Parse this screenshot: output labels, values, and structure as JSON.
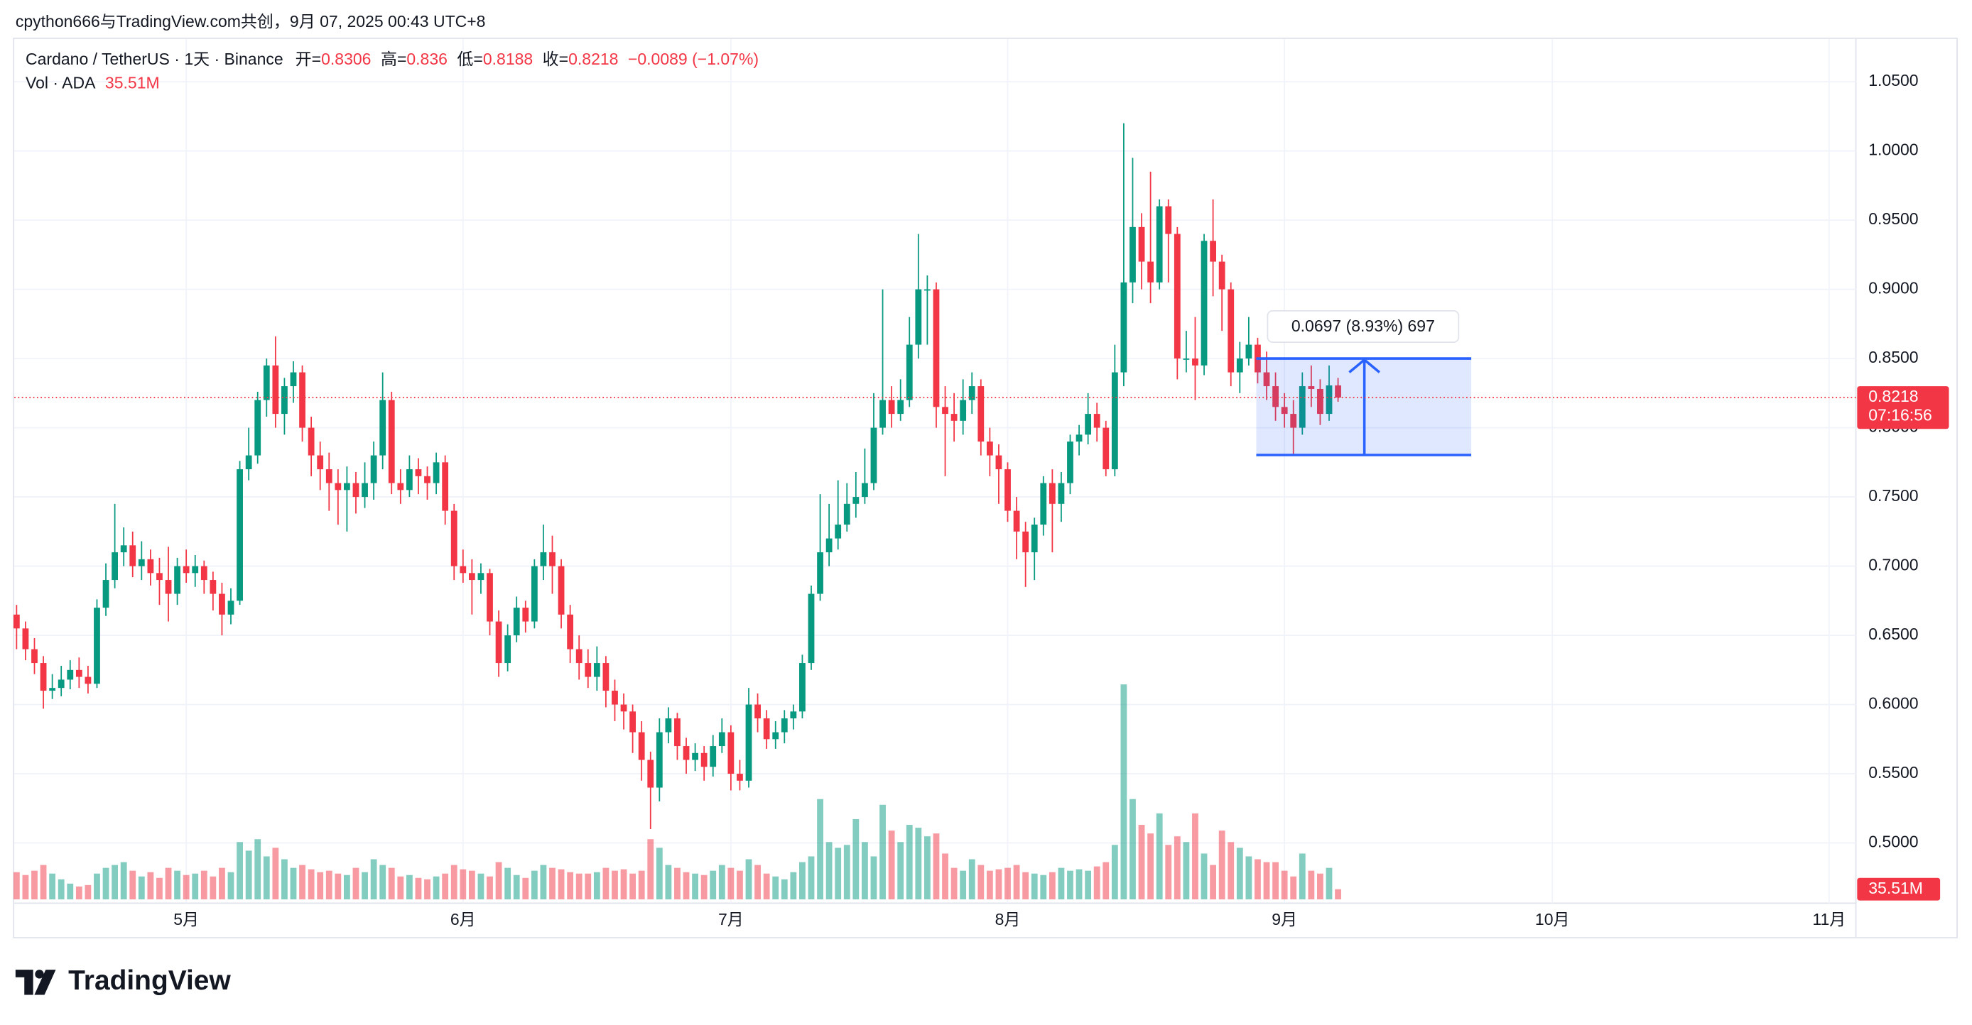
{
  "header": "cpython666与TradingView.com共创，9月 07, 2025 00:43 UTC+8",
  "brand": "TradingView",
  "chart_data": {
    "type": "candlestick",
    "legend": {
      "symbol": "Cardano / TetherUS · 1天 · Binance",
      "open_label": "开=",
      "high_label": "高=",
      "low_label": "低=",
      "close_label": "收=",
      "change": "−0.0089 (−1.07%)",
      "volume_title": "Vol · ADA"
    },
    "countdown": "07:16:56",
    "volume_label": "35.51M",
    "up_color": "#089981",
    "down_color": "#f23645",
    "open": [
      0.665,
      0.655,
      0.64,
      0.63,
      0.61,
      0.612,
      0.618,
      0.625,
      0.62,
      0.615,
      0.67,
      0.69,
      0.71,
      0.715,
      0.7,
      0.705,
      0.695,
      0.69,
      0.68,
      0.7,
      0.695,
      0.7,
      0.69,
      0.68,
      0.665,
      0.675,
      0.77,
      0.78,
      0.82,
      0.845,
      0.81,
      0.83,
      0.84,
      0.8,
      0.78,
      0.77,
      0.76,
      0.755,
      0.76,
      0.75,
      0.76,
      0.78,
      0.82,
      0.76,
      0.755,
      0.77,
      0.765,
      0.76,
      0.775,
      0.74,
      0.7,
      0.695,
      0.69,
      0.695,
      0.66,
      0.63,
      0.65,
      0.67,
      0.66,
      0.7,
      0.71,
      0.7,
      0.665,
      0.64,
      0.63,
      0.62,
      0.63,
      0.61,
      0.6,
      0.595,
      0.58,
      0.56,
      0.54,
      0.58,
      0.59,
      0.57,
      0.56,
      0.565,
      0.555,
      0.57,
      0.58,
      0.55,
      0.545,
      0.6,
      0.59,
      0.575,
      0.58,
      0.59,
      0.595,
      0.63,
      0.68,
      0.71,
      0.72,
      0.73,
      0.745,
      0.75,
      0.76,
      0.8,
      0.82,
      0.81,
      0.82,
      0.86,
      0.9,
      0.9,
      0.815,
      0.81,
      0.805,
      0.82,
      0.83,
      0.79,
      0.78,
      0.77,
      0.74,
      0.725,
      0.71,
      0.73,
      0.76,
      0.745,
      0.76,
      0.79,
      0.795,
      0.81,
      0.8,
      0.77,
      0.84,
      0.905,
      0.945,
      0.92,
      0.905,
      0.96,
      0.94,
      0.85,
      0.85,
      0.845,
      0.935,
      0.92,
      0.9,
      0.84,
      0.85,
      0.86,
      0.84,
      0.83,
      0.815,
      0.81,
      0.8,
      0.83,
      0.828,
      0.81,
      0.8306
    ],
    "high": [
      0.672,
      0.66,
      0.648,
      0.635,
      0.622,
      0.628,
      0.632,
      0.634,
      0.628,
      0.676,
      0.702,
      0.745,
      0.728,
      0.725,
      0.718,
      0.712,
      0.706,
      0.714,
      0.706,
      0.712,
      0.708,
      0.704,
      0.696,
      0.688,
      0.684,
      0.776,
      0.8,
      0.826,
      0.85,
      0.866,
      0.836,
      0.848,
      0.845,
      0.808,
      0.79,
      0.782,
      0.77,
      0.772,
      0.768,
      0.775,
      0.79,
      0.84,
      0.826,
      0.77,
      0.78,
      0.778,
      0.772,
      0.782,
      0.78,
      0.745,
      0.712,
      0.705,
      0.702,
      0.698,
      0.668,
      0.658,
      0.678,
      0.675,
      0.705,
      0.73,
      0.722,
      0.705,
      0.672,
      0.65,
      0.64,
      0.642,
      0.635,
      0.618,
      0.608,
      0.6,
      0.588,
      0.566,
      0.59,
      0.598,
      0.594,
      0.576,
      0.572,
      0.57,
      0.578,
      0.59,
      0.585,
      0.56,
      0.612,
      0.608,
      0.596,
      0.588,
      0.596,
      0.6,
      0.636,
      0.686,
      0.752,
      0.745,
      0.762,
      0.76,
      0.768,
      0.785,
      0.825,
      0.9,
      0.83,
      0.835,
      0.88,
      0.94,
      0.91,
      0.905,
      0.83,
      0.825,
      0.835,
      0.84,
      0.835,
      0.8,
      0.788,
      0.775,
      0.75,
      0.732,
      0.735,
      0.765,
      0.77,
      0.768,
      0.795,
      0.802,
      0.825,
      0.818,
      0.805,
      0.86,
      1.02,
      0.995,
      0.955,
      0.985,
      0.965,
      0.965,
      0.945,
      0.87,
      0.88,
      0.94,
      0.965,
      0.925,
      0.905,
      0.862,
      0.88,
      0.865,
      0.855,
      0.84,
      0.825,
      0.82,
      0.84,
      0.845,
      0.835,
      0.845,
      0.836
    ],
    "low": [
      0.64,
      0.632,
      0.622,
      0.597,
      0.604,
      0.606,
      0.611,
      0.612,
      0.608,
      0.612,
      0.664,
      0.684,
      0.7,
      0.692,
      0.69,
      0.686,
      0.672,
      0.66,
      0.672,
      0.688,
      0.685,
      0.68,
      0.668,
      0.65,
      0.658,
      0.672,
      0.762,
      0.774,
      0.808,
      0.8,
      0.795,
      0.818,
      0.79,
      0.765,
      0.755,
      0.74,
      0.73,
      0.725,
      0.738,
      0.742,
      0.748,
      0.77,
      0.752,
      0.745,
      0.75,
      0.752,
      0.748,
      0.752,
      0.73,
      0.69,
      0.688,
      0.665,
      0.68,
      0.65,
      0.62,
      0.624,
      0.645,
      0.652,
      0.655,
      0.69,
      0.68,
      0.655,
      0.63,
      0.618,
      0.612,
      0.61,
      0.598,
      0.588,
      0.582,
      0.565,
      0.545,
      0.51,
      0.53,
      0.572,
      0.56,
      0.55,
      0.552,
      0.545,
      0.548,
      0.565,
      0.538,
      0.538,
      0.54,
      0.58,
      0.568,
      0.568,
      0.572,
      0.582,
      0.59,
      0.625,
      0.675,
      0.7,
      0.712,
      0.725,
      0.735,
      0.745,
      0.755,
      0.795,
      0.8,
      0.805,
      0.815,
      0.85,
      0.86,
      0.8,
      0.765,
      0.79,
      0.795,
      0.81,
      0.78,
      0.765,
      0.745,
      0.732,
      0.705,
      0.685,
      0.69,
      0.722,
      0.71,
      0.732,
      0.752,
      0.78,
      0.788,
      0.79,
      0.765,
      0.765,
      0.83,
      0.89,
      0.9,
      0.89,
      0.9,
      0.905,
      0.835,
      0.84,
      0.82,
      0.838,
      0.895,
      0.87,
      0.83,
      0.825,
      0.845,
      0.832,
      0.82,
      0.805,
      0.8,
      0.78,
      0.795,
      0.815,
      0.802,
      0.805,
      0.8188
    ],
    "close": [
      0.655,
      0.64,
      0.63,
      0.61,
      0.612,
      0.618,
      0.625,
      0.62,
      0.615,
      0.67,
      0.69,
      0.71,
      0.715,
      0.7,
      0.705,
      0.695,
      0.69,
      0.68,
      0.7,
      0.695,
      0.7,
      0.69,
      0.68,
      0.665,
      0.675,
      0.77,
      0.78,
      0.82,
      0.845,
      0.81,
      0.83,
      0.84,
      0.8,
      0.78,
      0.77,
      0.76,
      0.755,
      0.76,
      0.75,
      0.76,
      0.78,
      0.82,
      0.76,
      0.755,
      0.77,
      0.765,
      0.76,
      0.775,
      0.74,
      0.7,
      0.695,
      0.69,
      0.695,
      0.66,
      0.63,
      0.65,
      0.67,
      0.66,
      0.7,
      0.71,
      0.7,
      0.665,
      0.64,
      0.63,
      0.62,
      0.63,
      0.61,
      0.6,
      0.595,
      0.58,
      0.56,
      0.54,
      0.58,
      0.59,
      0.57,
      0.56,
      0.565,
      0.555,
      0.57,
      0.58,
      0.55,
      0.545,
      0.6,
      0.59,
      0.575,
      0.58,
      0.59,
      0.595,
      0.63,
      0.68,
      0.71,
      0.72,
      0.73,
      0.745,
      0.75,
      0.76,
      0.8,
      0.82,
      0.81,
      0.82,
      0.86,
      0.9,
      0.9,
      0.815,
      0.81,
      0.805,
      0.82,
      0.83,
      0.79,
      0.78,
      0.77,
      0.74,
      0.725,
      0.71,
      0.73,
      0.76,
      0.745,
      0.76,
      0.79,
      0.795,
      0.81,
      0.8,
      0.77,
      0.84,
      0.905,
      0.945,
      0.92,
      0.905,
      0.96,
      0.94,
      0.85,
      0.85,
      0.845,
      0.935,
      0.92,
      0.9,
      0.84,
      0.85,
      0.86,
      0.84,
      0.83,
      0.815,
      0.81,
      0.8,
      0.83,
      0.828,
      0.81,
      0.8306,
      0.8218
    ],
    "volume": [
      95,
      85,
      100,
      120,
      90,
      70,
      55,
      45,
      50,
      90,
      110,
      120,
      130,
      100,
      80,
      95,
      75,
      110,
      100,
      85,
      90,
      100,
      80,
      110,
      95,
      200,
      170,
      210,
      150,
      180,
      140,
      110,
      120,
      105,
      95,
      100,
      90,
      85,
      110,
      95,
      140,
      120,
      110,
      80,
      85,
      75,
      70,
      80,
      90,
      120,
      105,
      100,
      90,
      80,
      130,
      110,
      85,
      75,
      100,
      120,
      110,
      105,
      95,
      90,
      90,
      95,
      110,
      100,
      105,
      90,
      100,
      210,
      180,
      120,
      110,
      95,
      90,
      85,
      100,
      120,
      110,
      100,
      140,
      120,
      90,
      80,
      70,
      95,
      130,
      150,
      350,
      200,
      180,
      190,
      280,
      200,
      150,
      330,
      240,
      200,
      260,
      250,
      220,
      230,
      160,
      110,
      100,
      140,
      120,
      100,
      105,
      110,
      120,
      95,
      90,
      85,
      95,
      110,
      100,
      105,
      100,
      115,
      130,
      190,
      750,
      350,
      260,
      230,
      300,
      190,
      220,
      200,
      300,
      160,
      120,
      240,
      200,
      180,
      150,
      140,
      130,
      130,
      100,
      80,
      160,
      100,
      90,
      110,
      35.51
    ],
    "volume_lim": [
      0,
      780
    ],
    "xlim": [
      -0.4,
      206
    ],
    "xticks": [
      {
        "value": 19,
        "label": "5月"
      },
      {
        "value": 50,
        "label": "6月"
      },
      {
        "value": 80,
        "label": "7月"
      },
      {
        "value": 111,
        "label": "8月"
      },
      {
        "value": 142,
        "label": "9月"
      },
      {
        "value": 172,
        "label": "10月"
      },
      {
        "value": 203,
        "label": "11月"
      }
    ],
    "ylim": [
      0.4311,
      1.0818
    ],
    "yticks": [
      {
        "value": 0.5,
        "label": "0.5000"
      },
      {
        "value": 0.55,
        "label": "0.5500"
      },
      {
        "value": 0.6,
        "label": "0.6000"
      },
      {
        "value": 0.65,
        "label": "0.6500"
      },
      {
        "value": 0.7,
        "label": "0.7000"
      },
      {
        "value": 0.75,
        "label": "0.7500"
      },
      {
        "value": 0.8,
        "label": "0.8000"
      },
      {
        "value": 0.85,
        "label": "0.8500"
      },
      {
        "value": 0.9,
        "label": "0.9000"
      },
      {
        "value": 0.95,
        "label": "0.9500"
      },
      {
        "value": 1.0,
        "label": "1.0000"
      },
      {
        "value": 1.05,
        "label": "1.0500"
      }
    ],
    "grid": true,
    "measure": {
      "label": "0.0697 (8.93%) 697",
      "low": 0.7803,
      "high": 0.85,
      "color": "#2962ff"
    }
  }
}
